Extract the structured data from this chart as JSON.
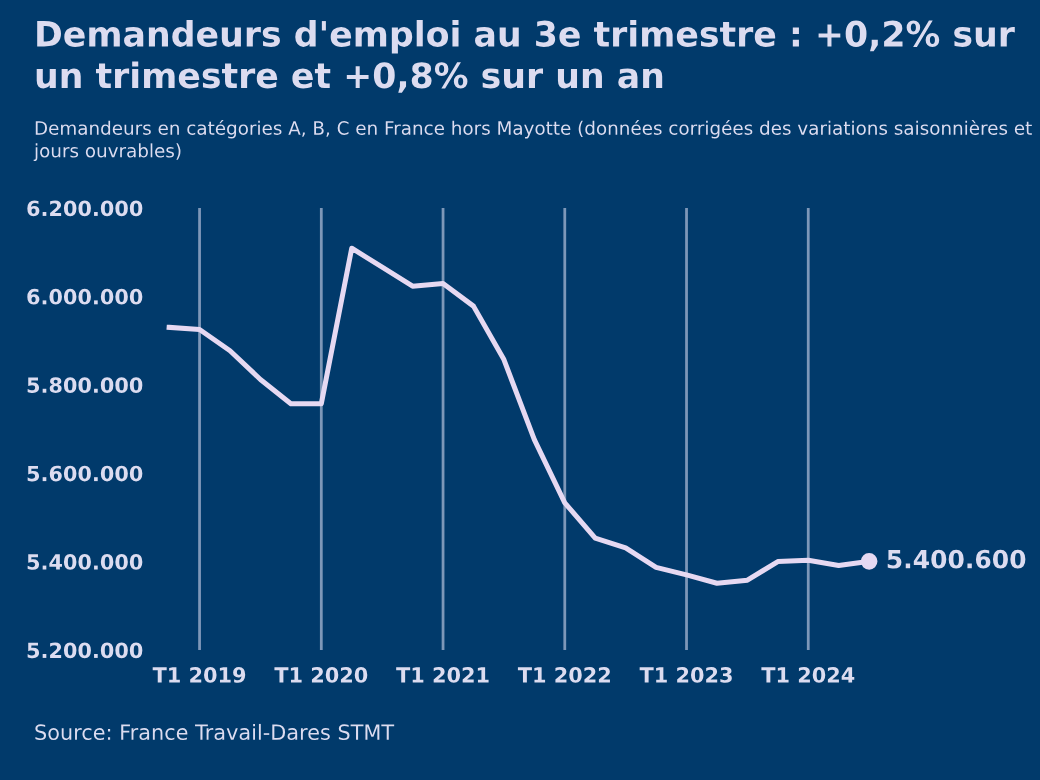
{
  "chart_data": {
    "type": "line",
    "title": "Demandeurs d'emploi au 3e trimestre : +0,2% sur un trimestre et +0,8% sur un an",
    "subtitle": "Demandeurs en catégories A, B, C en France hors Mayotte (données corrigées des variations saisonnières et jours ouvrables)",
    "annotations": [
      "Source: France Travail-Dares STMT"
    ],
    "categories": [
      null,
      "T1 2019",
      null,
      null,
      null,
      "T1 2020",
      null,
      null,
      null,
      "T1 2021",
      null,
      null,
      null,
      "T1 2022",
      null,
      null,
      null,
      "T1 2023",
      null,
      null,
      null,
      "T1 2024",
      null,
      null
    ],
    "series": [
      {
        "color": "#e6d9f2",
        "values": [
          5930000,
          5925000,
          5877000,
          5812000,
          5757000,
          5757000,
          6109000,
          6066000,
          6023000,
          6029000,
          5978000,
          5857000,
          5676000,
          5533000,
          5453000,
          5431000,
          5387000,
          5370000,
          5351000,
          5358000,
          5400000,
          5403000,
          5391000,
          5400600
        ],
        "value_labels": [
          null,
          null,
          null,
          null,
          null,
          null,
          null,
          null,
          null,
          null,
          null,
          null,
          null,
          null,
          null,
          null,
          null,
          null,
          null,
          null,
          null,
          null,
          null,
          "5.400.600"
        ]
      }
    ],
    "ylim": [
      5200000,
      6200000
    ],
    "yticks": [
      {
        "value": 5200000,
        "label": "5.200.000"
      },
      {
        "value": 5400000,
        "label": "5.400.000"
      },
      {
        "value": 5600000,
        "label": "5.600.000"
      },
      {
        "value": 5800000,
        "label": "5.800.000"
      },
      {
        "value": 6000000,
        "label": "6.000.000"
      },
      {
        "value": 6200000,
        "label": "6.200.000"
      }
    ],
    "grid": "x",
    "legend": false
  }
}
